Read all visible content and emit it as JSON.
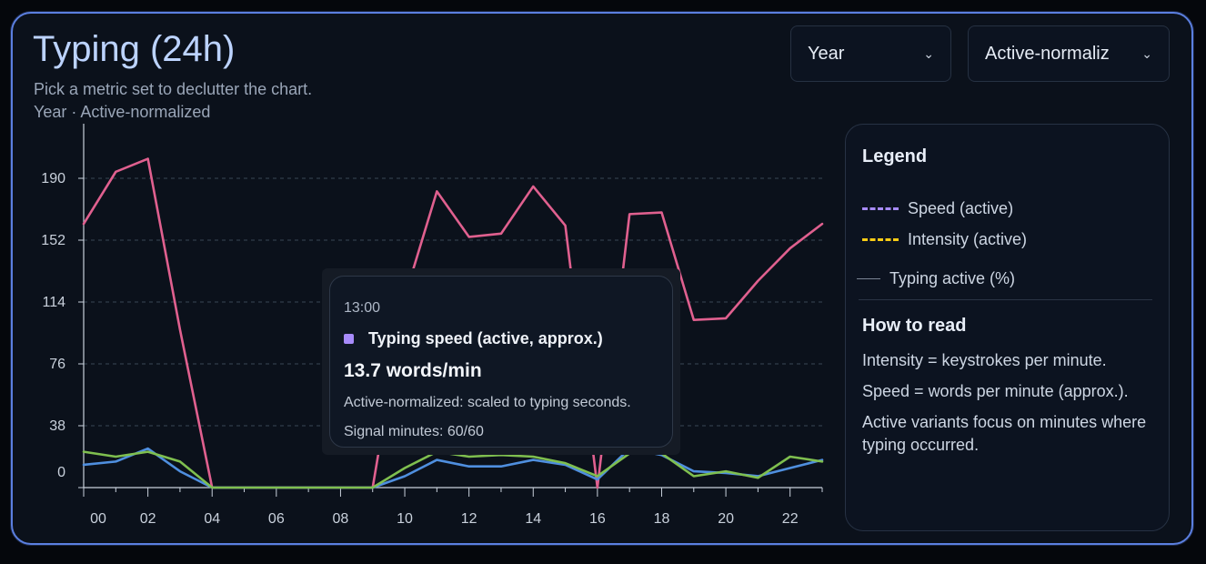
{
  "header": {
    "title": "Typing (24h)",
    "subtitle": "Pick a metric set to declutter the chart.",
    "context": "Year · Active-normalized"
  },
  "controls": {
    "range_select": {
      "value": "Year"
    },
    "mode_select": {
      "value": "Active-normaliz"
    }
  },
  "legend": {
    "title": "Legend",
    "items": [
      {
        "label": "Speed (active)",
        "color": "#a78bfa",
        "style": "dashed"
      },
      {
        "label": "Intensity (active)",
        "color": "#facc15",
        "style": "dashed"
      },
      {
        "label": "Typing active (%)",
        "color": "#7a8494",
        "style": "solid"
      }
    ],
    "howto_title": "How to read",
    "howto": [
      "Intensity = keystrokes per minute.",
      "Speed = words per minute (approx.).",
      "Active variants focus on minutes where typing occurred."
    ]
  },
  "tooltip": {
    "time": "13:00",
    "series": "Typing speed (active, approx.)",
    "value": "13.7 words/min",
    "note": "Active-normalized: scaled to typing seconds.",
    "signal": "Signal minutes: 60/60",
    "swatch_color": "#a78bfa"
  },
  "chart_data": {
    "type": "line",
    "x": [
      0,
      1,
      2,
      3,
      4,
      5,
      6,
      7,
      8,
      9,
      10,
      11,
      12,
      13,
      14,
      15,
      16,
      17,
      18,
      19,
      20,
      21,
      22,
      23
    ],
    "x_tick_labels": [
      "00",
      "02",
      "04",
      "06",
      "08",
      "10",
      "12",
      "14",
      "16",
      "18",
      "20",
      "22"
    ],
    "y_ticks": [
      0,
      38,
      76,
      114,
      152,
      190
    ],
    "ylim": [
      -10,
      222
    ],
    "grid": true,
    "series": [
      {
        "color": "#e0608f",
        "values": [
          162,
          194,
          202,
          97,
          0,
          0,
          0,
          0,
          0,
          0,
          117,
          182,
          154,
          156,
          185,
          161,
          0,
          168,
          169,
          103,
          104,
          127,
          147,
          162
        ]
      },
      {
        "color": "#4f8fdf",
        "values": [
          14,
          16,
          24,
          10,
          0,
          0,
          0,
          0,
          0,
          0,
          7,
          17,
          13,
          13,
          17,
          14,
          5,
          24,
          20,
          10,
          9,
          7,
          12,
          17
        ]
      },
      {
        "color": "#7fbf4f",
        "values": [
          22,
          19,
          22,
          16,
          0,
          0,
          0,
          0,
          0,
          0,
          12,
          22,
          19,
          20,
          19,
          15,
          7,
          21,
          21,
          7,
          10,
          6,
          19,
          16
        ]
      }
    ]
  }
}
